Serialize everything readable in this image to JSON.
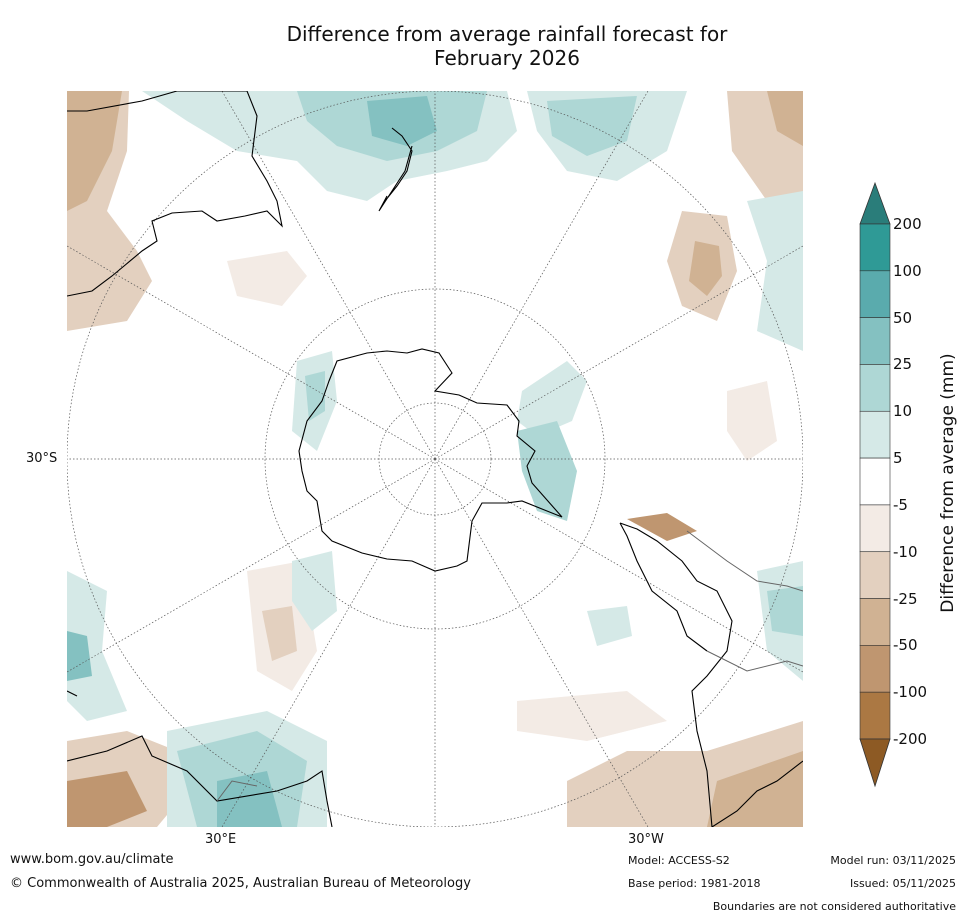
{
  "title": {
    "line1": "Difference from average rainfall forecast for",
    "line2": "February 2026"
  },
  "map": {
    "projection": "south-polar-stereographic",
    "lat_label": "30°S",
    "lon_labels": {
      "east": "30°E",
      "west": "30°W"
    }
  },
  "colorbar": {
    "title": "Difference from average (mm)",
    "labels": [
      "200",
      "100",
      "50",
      "25",
      "10",
      "5",
      "-5",
      "-10",
      "-25",
      "-50",
      "-100",
      "-200"
    ],
    "colors": [
      "#2f9a96",
      "#5aabad",
      "#84c1c1",
      "#aed7d5",
      "#d5e9e7",
      "#ffffff",
      "#f3ebe5",
      "#e3d0bf",
      "#d0b293",
      "#bf9670",
      "#ab7843"
    ],
    "over_color": "#2a7d7a",
    "under_color": "#8d5a24"
  },
  "colors": {
    "wet1": "#d5e9e7",
    "wet2": "#aed7d5",
    "wet3": "#84c1c1",
    "wet4": "#5aabad",
    "dry1": "#f3ebe5",
    "dry2": "#e3d0bf",
    "dry3": "#d0b293",
    "dry4": "#bf9670"
  },
  "footer": {
    "website": "www.bom.gov.au/climate",
    "copyright": "© Commonwealth of Australia 2025, Australian Bureau of Meteorology",
    "model": "Model: ACCESS-S2",
    "base_period": "Base period: 1981-2018",
    "model_run": "Model run: 03/11/2025",
    "issued": "Issued: 05/11/2025",
    "disclaimer": "Boundaries are not considered authoritative"
  }
}
